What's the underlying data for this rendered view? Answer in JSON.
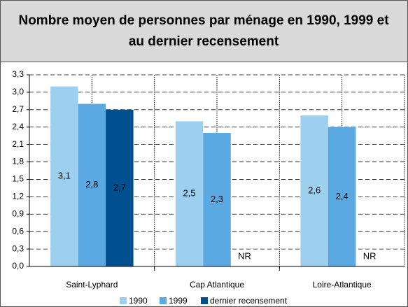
{
  "chart_data": {
    "type": "bar",
    "title_lines": [
      "Nombre moyen de personnes par ménage en 1990, 1999 et",
      "au dernier recensement"
    ],
    "categories": [
      "Saint-Lyphard",
      "Cap Atlantique",
      "Loire-Atlantique"
    ],
    "series": [
      {
        "name": "1990",
        "color": "#9dcfee",
        "values": [
          3.1,
          2.5,
          2.6
        ],
        "value_labels": [
          "3,1",
          "2,5",
          "2,6"
        ]
      },
      {
        "name": "1999",
        "color": "#5aa9e2",
        "values": [
          2.8,
          2.3,
          2.4
        ],
        "value_labels": [
          "2,8",
          "2,3",
          "2,4"
        ]
      },
      {
        "name": "dernier recensement",
        "color": "#00508f",
        "values": [
          2.7,
          null,
          null
        ],
        "value_labels": [
          "2,7",
          "NR",
          "NR"
        ]
      }
    ],
    "ylim": [
      0,
      3.3
    ],
    "yticks": [
      {
        "value": 0,
        "label": "0,0"
      },
      {
        "value": 0.3,
        "label": "0,3"
      },
      {
        "value": 0.6,
        "label": "0,6"
      },
      {
        "value": 0.9,
        "label": "0,9"
      },
      {
        "value": 1.2,
        "label": "1,2"
      },
      {
        "value": 1.5,
        "label": "1,5"
      },
      {
        "value": 1.8,
        "label": "1,8"
      },
      {
        "value": 2.1,
        "label": "2,1"
      },
      {
        "value": 2.4,
        "label": "2,4"
      },
      {
        "value": 2.7,
        "label": "2,7"
      },
      {
        "value": 3.0,
        "label": "3,0"
      },
      {
        "value": 3.3,
        "label": "3,3"
      }
    ],
    "grid": true
  }
}
